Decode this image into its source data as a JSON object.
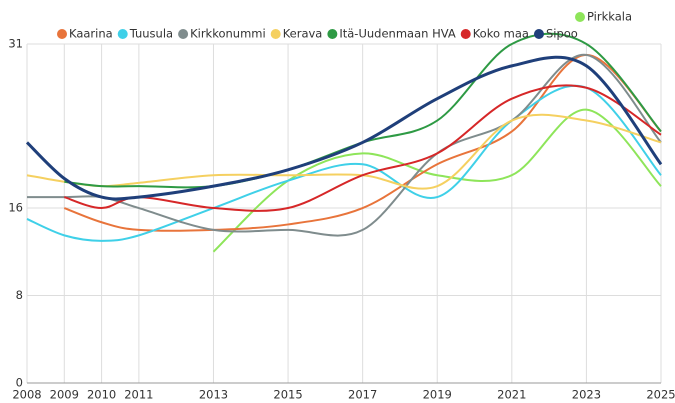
{
  "chart_data": {
    "type": "line",
    "x": [
      2008,
      2009,
      2010,
      2011,
      2013,
      2015,
      2017,
      2019,
      2021,
      2023,
      2025
    ],
    "xlim": [
      2008,
      2025
    ],
    "xticks": [
      2008,
      2009,
      2010,
      2011,
      2013,
      2015,
      2017,
      2019,
      2021,
      2023,
      2025
    ],
    "ylim": [
      0,
      31
    ],
    "yticks": [
      0,
      8,
      16,
      31
    ],
    "grid": true,
    "series": [
      {
        "name": "Pirkkala",
        "color": "#8ee55a",
        "values": [
          null,
          null,
          null,
          null,
          12,
          18.5,
          21,
          19,
          19,
          25,
          18
        ]
      },
      {
        "name": "Kaarina",
        "color": "#e8743b",
        "values": [
          null,
          16,
          14.7,
          14,
          14,
          14.5,
          16,
          20,
          23,
          30,
          23
        ]
      },
      {
        "name": "Tuusula",
        "color": "#3fd0e8",
        "values": [
          15,
          13.5,
          13,
          13.5,
          16,
          18.5,
          20,
          17,
          24,
          27,
          19
        ]
      },
      {
        "name": "Kirkkonummi",
        "color": "#7f8c8d",
        "values": [
          17,
          17,
          17,
          16,
          14,
          14,
          14,
          21,
          24,
          30,
          22
        ]
      },
      {
        "name": "Kerava",
        "color": "#f5d060",
        "values": [
          19,
          18.4,
          18,
          18.3,
          19,
          19,
          19,
          18,
          24,
          24,
          22
        ]
      },
      {
        "name": "Itä-Uudenmaan HVA",
        "color": "#2e9a44",
        "values": [
          null,
          18.4,
          18,
          18,
          18,
          19.5,
          22,
          24,
          31,
          31,
          23
        ]
      },
      {
        "name": "Koko maa",
        "color": "#d62728",
        "values": [
          null,
          17,
          16,
          17,
          16,
          16,
          19,
          21,
          26,
          27,
          22.7
        ]
      },
      {
        "name": "Sipoo",
        "color": "#1f3f7a",
        "values": [
          22,
          18.7,
          17,
          17,
          18,
          19.5,
          22,
          26,
          29,
          29,
          20
        ]
      }
    ]
  }
}
